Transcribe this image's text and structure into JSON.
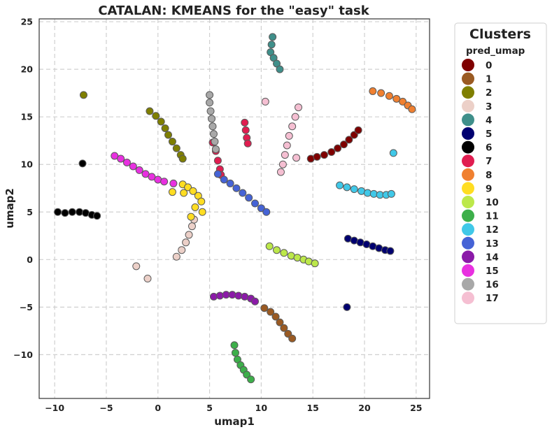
{
  "chart_data": {
    "type": "scatter",
    "title": "CATALAN: KMEANS for the \"easy\" task",
    "xlabel": "umap1",
    "ylabel": "umap2",
    "xlim": [
      -11.5,
      26.3
    ],
    "ylim": [
      -14.6,
      25.3
    ],
    "xticks": [
      -10,
      -5,
      0,
      5,
      10,
      15,
      20,
      25
    ],
    "yticks": [
      -10,
      -5,
      0,
      5,
      10,
      15,
      20,
      25
    ],
    "xtick_labels": [
      "−10",
      "−5",
      "0",
      "5",
      "10",
      "15",
      "20",
      "25"
    ],
    "ytick_labels": [
      "−10",
      "−5",
      "0",
      "5",
      "10",
      "15",
      "20",
      "25"
    ],
    "grid": true,
    "legend": {
      "title": "Clusters",
      "subtitle": "pred_umap",
      "placement": "outside-right"
    },
    "series": [
      {
        "name": "0",
        "color": "#7f0000",
        "points": [
          [
            14.8,
            10.6
          ],
          [
            15.4,
            10.8
          ],
          [
            16.1,
            11.0
          ],
          [
            16.8,
            11.3
          ],
          [
            17.4,
            11.7
          ],
          [
            18.0,
            12.1
          ],
          [
            18.5,
            12.6
          ],
          [
            19.0,
            13.1
          ],
          [
            19.4,
            13.6
          ]
        ]
      },
      {
        "name": "1",
        "color": "#9a5a22",
        "points": [
          [
            10.3,
            -5.1
          ],
          [
            10.9,
            -5.5
          ],
          [
            11.4,
            -6.0
          ],
          [
            11.8,
            -6.6
          ],
          [
            12.2,
            -7.2
          ],
          [
            12.6,
            -7.8
          ],
          [
            13.0,
            -8.3
          ]
        ]
      },
      {
        "name": "2",
        "color": "#7f7f00",
        "points": [
          [
            -7.2,
            17.3
          ],
          [
            -0.8,
            15.6
          ],
          [
            -0.2,
            15.1
          ],
          [
            0.3,
            14.5
          ],
          [
            0.7,
            13.8
          ],
          [
            1.0,
            13.1
          ],
          [
            1.4,
            12.4
          ],
          [
            1.8,
            11.7
          ],
          [
            2.2,
            11.0
          ],
          [
            2.4,
            10.6
          ]
        ]
      },
      {
        "name": "3",
        "color": "#ecd0c8",
        "points": [
          [
            -2.1,
            -0.7
          ],
          [
            -1.0,
            -2.0
          ],
          [
            1.8,
            0.3
          ],
          [
            2.3,
            1.0
          ],
          [
            2.7,
            1.8
          ],
          [
            3.0,
            2.6
          ],
          [
            3.3,
            3.5
          ],
          [
            3.5,
            4.2
          ]
        ]
      },
      {
        "name": "4",
        "color": "#3f8f8a",
        "points": [
          [
            11.1,
            23.4
          ],
          [
            11.0,
            22.6
          ],
          [
            10.9,
            21.8
          ],
          [
            11.2,
            21.2
          ],
          [
            11.5,
            20.6
          ],
          [
            11.8,
            20.0
          ]
        ]
      },
      {
        "name": "5",
        "color": "#000070",
        "points": [
          [
            18.3,
            -5.0
          ],
          [
            18.4,
            2.2
          ],
          [
            19.0,
            2.0
          ],
          [
            19.6,
            1.8
          ],
          [
            20.2,
            1.6
          ],
          [
            20.8,
            1.4
          ],
          [
            21.4,
            1.2
          ],
          [
            22.0,
            1.0
          ],
          [
            22.5,
            0.9
          ]
        ]
      },
      {
        "name": "6",
        "color": "#000000",
        "points": [
          [
            -7.3,
            10.1
          ],
          [
            -9.7,
            5.0
          ],
          [
            -9.0,
            4.9
          ],
          [
            -8.3,
            5.0
          ],
          [
            -7.6,
            5.0
          ],
          [
            -7.0,
            4.9
          ],
          [
            -6.4,
            4.7
          ],
          [
            -5.9,
            4.6
          ]
        ]
      },
      {
        "name": "7",
        "color": "#e01d50",
        "points": [
          [
            5.3,
            12.3
          ],
          [
            5.6,
            11.4
          ],
          [
            5.8,
            10.4
          ],
          [
            6.0,
            9.5
          ],
          [
            6.1,
            8.9
          ],
          [
            8.4,
            14.4
          ],
          [
            8.5,
            13.6
          ],
          [
            8.6,
            12.8
          ],
          [
            8.7,
            12.2
          ]
        ]
      },
      {
        "name": "8",
        "color": "#f08030",
        "points": [
          [
            20.8,
            17.7
          ],
          [
            21.6,
            17.5
          ],
          [
            22.4,
            17.2
          ],
          [
            23.1,
            16.9
          ],
          [
            23.7,
            16.6
          ],
          [
            24.2,
            16.2
          ],
          [
            24.6,
            15.8
          ]
        ]
      },
      {
        "name": "9",
        "color": "#ffdd22",
        "points": [
          [
            2.4,
            7.9
          ],
          [
            2.9,
            7.6
          ],
          [
            3.4,
            7.2
          ],
          [
            3.9,
            6.7
          ],
          [
            4.2,
            6.1
          ],
          [
            3.6,
            5.5
          ],
          [
            4.3,
            5.0
          ],
          [
            3.2,
            4.5
          ],
          [
            2.5,
            7.0
          ],
          [
            1.4,
            7.1
          ]
        ]
      },
      {
        "name": "10",
        "color": "#bce84a",
        "points": [
          [
            10.8,
            1.4
          ],
          [
            11.5,
            1.0
          ],
          [
            12.2,
            0.7
          ],
          [
            12.9,
            0.4
          ],
          [
            13.5,
            0.2
          ],
          [
            14.1,
            0.0
          ],
          [
            14.6,
            -0.2
          ],
          [
            15.2,
            -0.4
          ]
        ]
      },
      {
        "name": "11",
        "color": "#3daf4a",
        "points": [
          [
            7.4,
            -9.0
          ],
          [
            7.5,
            -9.8
          ],
          [
            7.7,
            -10.5
          ],
          [
            8.0,
            -11.1
          ],
          [
            8.3,
            -11.6
          ],
          [
            8.6,
            -12.1
          ],
          [
            9.0,
            -12.6
          ]
        ]
      },
      {
        "name": "12",
        "color": "#40c8e8",
        "points": [
          [
            17.6,
            7.8
          ],
          [
            18.3,
            7.6
          ],
          [
            19.0,
            7.4
          ],
          [
            19.7,
            7.2
          ],
          [
            20.3,
            7.0
          ],
          [
            20.9,
            6.9
          ],
          [
            21.5,
            6.8
          ],
          [
            22.1,
            6.8
          ],
          [
            22.6,
            6.9
          ],
          [
            22.8,
            11.2
          ]
        ]
      },
      {
        "name": "13",
        "color": "#4563d6",
        "points": [
          [
            5.8,
            9.0
          ],
          [
            6.4,
            8.4
          ],
          [
            7.0,
            8.0
          ],
          [
            7.6,
            7.5
          ],
          [
            8.2,
            7.0
          ],
          [
            8.8,
            6.5
          ],
          [
            9.4,
            5.9
          ],
          [
            10.0,
            5.4
          ],
          [
            10.5,
            5.0
          ]
        ]
      },
      {
        "name": "14",
        "color": "#8b1aa8",
        "points": [
          [
            5.4,
            -3.9
          ],
          [
            6.0,
            -3.8
          ],
          [
            6.6,
            -3.7
          ],
          [
            7.2,
            -3.7
          ],
          [
            7.8,
            -3.8
          ],
          [
            8.4,
            -3.9
          ],
          [
            9.0,
            -4.1
          ],
          [
            9.4,
            -4.4
          ]
        ]
      },
      {
        "name": "15",
        "color": "#e830e0",
        "points": [
          [
            -4.2,
            10.9
          ],
          [
            -3.6,
            10.6
          ],
          [
            -3.0,
            10.2
          ],
          [
            -2.4,
            9.8
          ],
          [
            -1.8,
            9.4
          ],
          [
            -1.2,
            9.0
          ],
          [
            -0.6,
            8.7
          ],
          [
            0.0,
            8.4
          ],
          [
            0.6,
            8.2
          ],
          [
            1.5,
            8.0
          ]
        ]
      },
      {
        "name": "16",
        "color": "#a8a8a8",
        "points": [
          [
            5.0,
            17.3
          ],
          [
            5.0,
            16.5
          ],
          [
            5.1,
            15.6
          ],
          [
            5.2,
            14.8
          ],
          [
            5.3,
            14.0
          ],
          [
            5.4,
            13.2
          ],
          [
            5.5,
            12.4
          ],
          [
            5.6,
            11.6
          ]
        ]
      },
      {
        "name": "17",
        "color": "#f5bfd2",
        "points": [
          [
            10.4,
            16.6
          ],
          [
            13.6,
            16.0
          ],
          [
            13.3,
            15.0
          ],
          [
            13.0,
            14.0
          ],
          [
            12.7,
            13.0
          ],
          [
            12.5,
            12.0
          ],
          [
            12.3,
            11.0
          ],
          [
            12.1,
            10.0
          ],
          [
            13.4,
            10.7
          ],
          [
            11.9,
            9.2
          ]
        ]
      }
    ]
  }
}
